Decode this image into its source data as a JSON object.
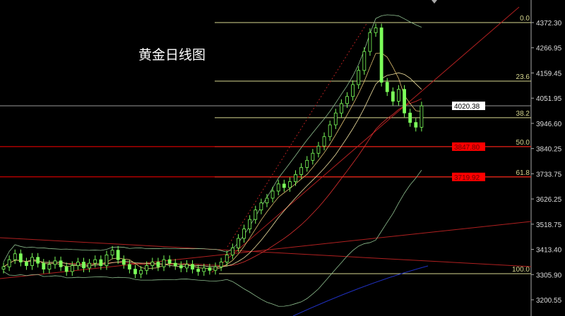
{
  "chart_data": {
    "type": "candlestick",
    "title": "黄金日线图",
    "ylim": [
      3200.55,
      4372.3
    ],
    "y_ticks": [
      "4372.30",
      "4266.95",
      "4159.45",
      "4051.95",
      "3946.60",
      "3840.25",
      "3733.75",
      "3626.25",
      "3518.75",
      "3413.40",
      "3305.90",
      "3200.55"
    ],
    "current_price": "4020.38",
    "price_tags": [
      {
        "value": "3847.80",
        "color": "#ff0000"
      },
      {
        "value": "3719.92",
        "color": "#ff0000"
      }
    ],
    "fib_levels": [
      {
        "label": "0.0",
        "price": 4372.3
      },
      {
        "label": "23.6",
        "price": 4125
      },
      {
        "label": "38.2",
        "price": 3970
      },
      {
        "label": "50.0",
        "price": 3847.8
      },
      {
        "label": "61.8",
        "price": 3719.92
      },
      {
        "label": "100.0",
        "price": 3311
      }
    ],
    "closes": [
      3340,
      3370,
      3395,
      3360,
      3345,
      3380,
      3355,
      3330,
      3350,
      3365,
      3340,
      3320,
      3345,
      3360,
      3335,
      3355,
      3370,
      3345,
      3390,
      3410,
      3370,
      3350,
      3330,
      3310,
      3325,
      3345,
      3360,
      3340,
      3370,
      3355,
      3345,
      3335,
      3350,
      3330,
      3320,
      3335,
      3325,
      3340,
      3360,
      3390,
      3420,
      3460,
      3500,
      3540,
      3580,
      3610,
      3630,
      3660,
      3690,
      3675,
      3700,
      3730,
      3760,
      3790,
      3820,
      3850,
      3890,
      3940,
      3990,
      4030,
      4060,
      4110,
      4170,
      4250,
      4330,
      4350,
      4120,
      4080,
      4040,
      4090,
      3990,
      3950,
      3930,
      4020
    ],
    "colors": {
      "candle": "#7cff5a",
      "fib": "#d8d890",
      "support": "#c00000",
      "trend": "#b02020",
      "axis": "#ffffff",
      "band": "#90c090",
      "ma_fast": "#f0e0a0",
      "ma_slow": "#e03030",
      "long_ma": "#2030c0"
    }
  }
}
